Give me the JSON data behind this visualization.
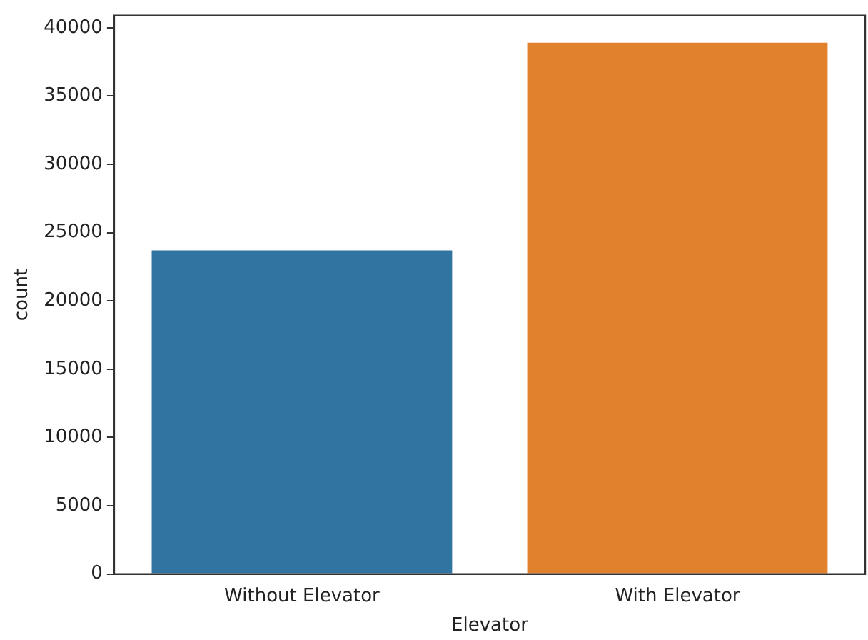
{
  "chart_data": {
    "type": "bar",
    "xlabel": "Elevator",
    "ylabel": "count",
    "categories": [
      "Without Elevator",
      "With Elevator"
    ],
    "values": [
      23700,
      38900
    ],
    "colors": [
      "#3274a1",
      "#e1812c"
    ],
    "ylim": [
      0,
      40900
    ],
    "yticks": [
      0,
      5000,
      10000,
      15000,
      20000,
      25000,
      30000,
      35000,
      40000
    ],
    "grid": false,
    "legend": false
  }
}
